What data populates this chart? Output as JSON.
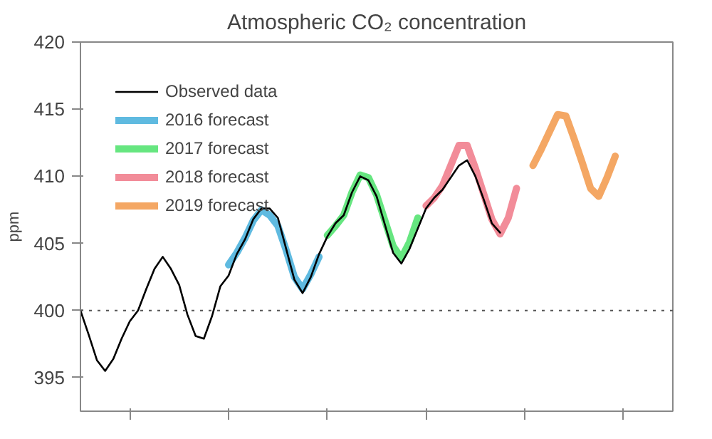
{
  "chart_data": {
    "type": "line",
    "title": "Atmospheric CO₂ concentration",
    "ylabel": "ppm",
    "categories": [
      null,
      null,
      null,
      null,
      null,
      null,
      null,
      null,
      null,
      null,
      null,
      null,
      null,
      null,
      null,
      null,
      null,
      null,
      null,
      null,
      null,
      null,
      null,
      null,
      null,
      null,
      null,
      null,
      null,
      null,
      null,
      null,
      null,
      null,
      null,
      null,
      null,
      null,
      null,
      null,
      null,
      null,
      null,
      null,
      null,
      null,
      null,
      null,
      null,
      null,
      null,
      null,
      null,
      null,
      null,
      null,
      null,
      null,
      null,
      null,
      null,
      null,
      null,
      null,
      null,
      null,
      null,
      null,
      null,
      null,
      null,
      null,
      null
    ],
    "ylim": [
      392.5,
      420
    ],
    "yticks": [
      395,
      400,
      405,
      410,
      415,
      420
    ],
    "grid": false,
    "legend": "top left",
    "line_style": "solid",
    "ref_lines": [
      {
        "axis": "y",
        "value": 400,
        "color": "#555555",
        "line_style": "dotted"
      }
    ],
    "series": [
      {
        "name": "2016 forecast",
        "color": "#29a3d6",
        "values": [
          null,
          null,
          null,
          null,
          null,
          null,
          null,
          null,
          null,
          null,
          null,
          null,
          null,
          null,
          null,
          null,
          null,
          null,
          403.4,
          404.3,
          405.4,
          406.7,
          407.5,
          407.1,
          406.3,
          404.5,
          402.5,
          401.6,
          402.7,
          404.0,
          null,
          null,
          null,
          null,
          null,
          null,
          null,
          null,
          null,
          null,
          null,
          null,
          null,
          null,
          null,
          null,
          null,
          null,
          null,
          null,
          null,
          null,
          null,
          null,
          null,
          null,
          null,
          null,
          null,
          null,
          null,
          null,
          null,
          null,
          null,
          null,
          null,
          null,
          null,
          null,
          null,
          null,
          null
        ]
      },
      {
        "name": "2017 forecast",
        "color": "#33dd55",
        "values": [
          null,
          null,
          null,
          null,
          null,
          null,
          null,
          null,
          null,
          null,
          null,
          null,
          null,
          null,
          null,
          null,
          null,
          null,
          null,
          null,
          null,
          null,
          null,
          null,
          null,
          null,
          null,
          null,
          null,
          null,
          405.6,
          406.3,
          407.1,
          408.8,
          410.1,
          409.9,
          408.6,
          406.7,
          404.8,
          403.9,
          405.1,
          406.9,
          null,
          null,
          null,
          null,
          null,
          null,
          null,
          null,
          null,
          null,
          null,
          null,
          null,
          null,
          null,
          null,
          null,
          null,
          null,
          null,
          null,
          null,
          null,
          null,
          null,
          null,
          null,
          null,
          null,
          null,
          null
        ]
      },
      {
        "name": "2018 forecast",
        "color": "#ee6677",
        "values": [
          null,
          null,
          null,
          null,
          null,
          null,
          null,
          null,
          null,
          null,
          null,
          null,
          null,
          null,
          null,
          null,
          null,
          null,
          null,
          null,
          null,
          null,
          null,
          null,
          null,
          null,
          null,
          null,
          null,
          null,
          null,
          null,
          null,
          null,
          null,
          null,
          null,
          null,
          null,
          null,
          null,
          null,
          407.8,
          408.4,
          409.3,
          410.8,
          412.3,
          412.3,
          410.6,
          408.7,
          406.8,
          405.7,
          406.9,
          409.1,
          null,
          null,
          null,
          null,
          null,
          null,
          null,
          null,
          null,
          null,
          null,
          null,
          null,
          null,
          null,
          null,
          null,
          null,
          null
        ]
      },
      {
        "name": "2019 forecast",
        "color": "#f08a30",
        "values": [
          null,
          null,
          null,
          null,
          null,
          null,
          null,
          null,
          null,
          null,
          null,
          null,
          null,
          null,
          null,
          null,
          null,
          null,
          null,
          null,
          null,
          null,
          null,
          null,
          null,
          null,
          null,
          null,
          null,
          null,
          null,
          null,
          null,
          null,
          null,
          null,
          null,
          null,
          null,
          null,
          null,
          null,
          null,
          null,
          null,
          null,
          null,
          null,
          null,
          null,
          null,
          null,
          null,
          null,
          null,
          410.8,
          412.0,
          413.3,
          414.6,
          414.5,
          412.8,
          411.0,
          409.1,
          408.5,
          409.9,
          411.5,
          null,
          null,
          null,
          null,
          null,
          null,
          null
        ]
      },
      {
        "name": "Observed data",
        "color": "#000000",
        "values": [
          400.0,
          398.2,
          396.3,
          395.5,
          396.4,
          397.9,
          399.2,
          400.0,
          401.6,
          403.1,
          404.0,
          403.1,
          401.9,
          399.7,
          398.1,
          397.9,
          399.6,
          401.8,
          402.6,
          404.2,
          405.3,
          406.8,
          407.6,
          407.6,
          406.9,
          404.6,
          402.3,
          401.3,
          402.5,
          404.2,
          405.5,
          406.5,
          407.1,
          408.8,
          410.0,
          409.7,
          408.5,
          406.4,
          404.3,
          403.5,
          404.6,
          406.1,
          407.6,
          408.4,
          409.0,
          409.9,
          410.8,
          411.2,
          410.0,
          408.3,
          406.5,
          405.8,
          null,
          null,
          null,
          null,
          null,
          null,
          null,
          null,
          null,
          null,
          null,
          null,
          null,
          null,
          null,
          null,
          null,
          null,
          null,
          null,
          null
        ]
      }
    ]
  }
}
